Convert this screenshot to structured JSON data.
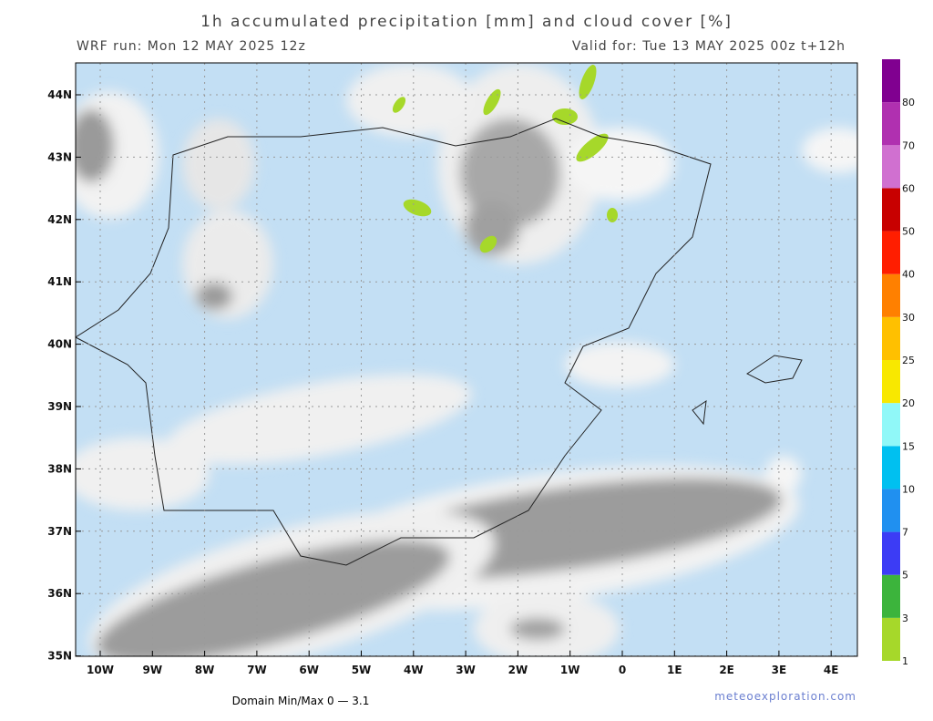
{
  "header": {
    "title": "1h accumulated precipitation [mm] and cloud cover [%]",
    "run": "WRF run: Mon 12 MAY 2025 12z",
    "valid": "Valid for: Tue 13 MAY 2025 00z  t+12h"
  },
  "map": {
    "latitude_labels": [
      "44N",
      "43N",
      "42N",
      "41N",
      "40N",
      "39N",
      "38N",
      "37N",
      "36N",
      "35N"
    ],
    "longitude_labels": [
      "10W",
      "9W",
      "8W",
      "7W",
      "6W",
      "5W",
      "4W",
      "3W",
      "2W",
      "1W",
      "0",
      "1E",
      "2E",
      "3E",
      "4E"
    ]
  },
  "colorbar": {
    "labels": [
      "1",
      "3",
      "5",
      "7",
      "10",
      "15",
      "20",
      "25",
      "30",
      "40",
      "50",
      "60",
      "70",
      "80"
    ],
    "colors": [
      "#a6d82a",
      "#3cb43c",
      "#3c3cf5",
      "#2090f0",
      "#00c0f0",
      "#90f8f8",
      "#f8e800",
      "#ffc000",
      "#ff8000",
      "#ff1e00",
      "#c80000",
      "#d070d0",
      "#b030b0",
      "#800090"
    ]
  },
  "footer": {
    "domain": "Domain Min/Max 0 — 3.1",
    "site": "meteoexploration.com"
  }
}
